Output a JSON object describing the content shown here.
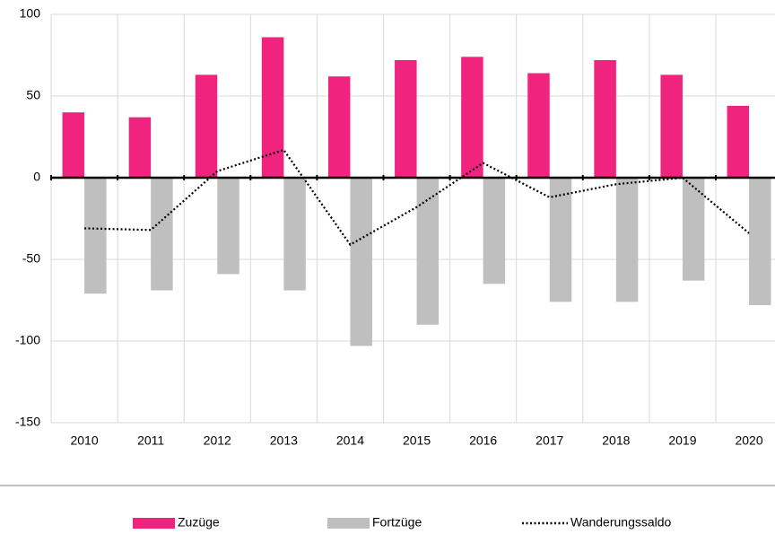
{
  "chart_data": {
    "type": "bar",
    "categories": [
      "2010",
      "2011",
      "2012",
      "2013",
      "2014",
      "2015",
      "2016",
      "2017",
      "2018",
      "2019",
      "2020"
    ],
    "series": [
      {
        "name": "Zuzüge",
        "type": "bar",
        "color": "#f0247f",
        "values": [
          40,
          37,
          63,
          86,
          62,
          72,
          74,
          64,
          72,
          63,
          44
        ]
      },
      {
        "name": "Fortzüge",
        "type": "bar",
        "color": "#bfbfbf",
        "values": [
          -71,
          -69,
          -59,
          -69,
          -103,
          -90,
          -65,
          -76,
          -76,
          -63,
          -78
        ]
      },
      {
        "name": "Wanderungssaldo",
        "type": "line",
        "color": "#000000",
        "values": [
          -31,
          -32,
          4,
          17,
          -41,
          -18,
          9,
          -12,
          -4,
          0,
          -34
        ]
      }
    ],
    "ylim": [
      -150,
      100
    ],
    "yticks": [
      -150,
      -100,
      -50,
      0,
      50,
      100
    ],
    "grid": true,
    "legend": "bottom"
  }
}
